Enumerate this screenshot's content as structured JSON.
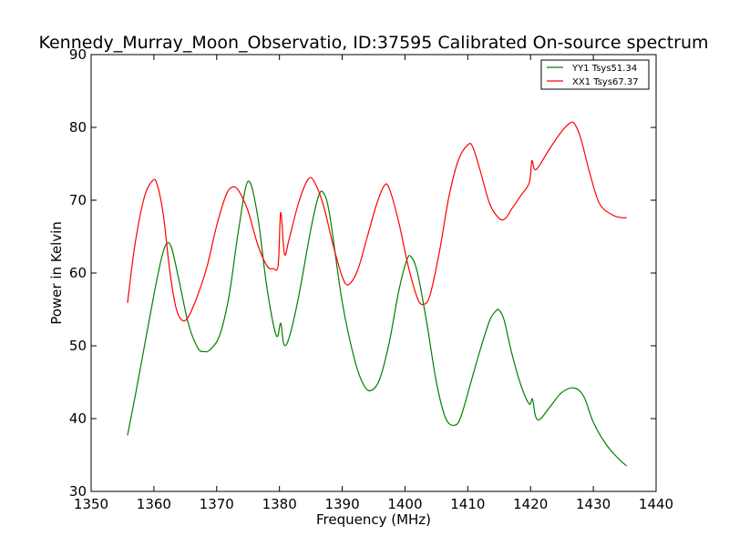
{
  "chart_data": {
    "type": "line",
    "title": "Kennedy_Murray_Moon_Observatio, ID:37595 Calibrated On-source spectrum",
    "xlabel": "Frequency (MHz)",
    "ylabel": "Power in Kelvin",
    "xlim": [
      1350,
      1440
    ],
    "ylim": [
      30,
      90
    ],
    "xticks": [
      "1350",
      "1360",
      "1370",
      "1380",
      "1390",
      "1400",
      "1410",
      "1420",
      "1430",
      "1440"
    ],
    "yticks": [
      "30",
      "40",
      "50",
      "60",
      "70",
      "80",
      "90"
    ],
    "grid": false,
    "legend_position": "top-right",
    "series": [
      {
        "name": "YY1 Tsys51.34",
        "color": "#008000",
        "x": [
          1355.8,
          1357,
          1358.5,
          1360,
          1361.2,
          1362,
          1362.8,
          1364,
          1365.5,
          1367,
          1368,
          1369,
          1370.5,
          1372,
          1373.5,
          1375,
          1376.5,
          1378,
          1379.5,
          1380.2,
          1380.7,
          1381.5,
          1383,
          1385,
          1386.2,
          1387,
          1388,
          1390,
          1392,
          1393.5,
          1394.7,
          1396,
          1397.5,
          1399,
          1400.3,
          1401,
          1402,
          1403.5,
          1405,
          1406.5,
          1408,
          1409,
          1410.5,
          1412,
          1413.5,
          1414.5,
          1415,
          1415.8,
          1417,
          1418.5,
          1419.8,
          1420.3,
          1420.8,
          1421.5,
          1423,
          1425,
          1427,
          1428.5,
          1430,
          1432,
          1434,
          1435.3
        ],
        "y": [
          37.7,
          43,
          50,
          57,
          62,
          64,
          63.5,
          59,
          53,
          49.7,
          49.2,
          49.5,
          51.5,
          57,
          66,
          72.6,
          68,
          58,
          51.4,
          53.1,
          50.2,
          51,
          56.5,
          66,
          70.5,
          71,
          68,
          56,
          48,
          44.5,
          43.9,
          45.5,
          50.5,
          57.5,
          61.8,
          62.2,
          60,
          53,
          45,
          40,
          39.1,
          40.5,
          45,
          49.5,
          53.5,
          54.8,
          54.9,
          53.5,
          49,
          44.5,
          42,
          42.7,
          40.3,
          39.9,
          41.5,
          43.6,
          44.2,
          43,
          39.5,
          36.5,
          34.5,
          33.5
        ]
      },
      {
        "name": "XX1 Tsys67.37",
        "color": "#ff0000",
        "x": [
          1355.8,
          1357,
          1358.5,
          1359.8,
          1360.5,
          1361.5,
          1362.5,
          1363.5,
          1364.5,
          1365.5,
          1367,
          1368.5,
          1370,
          1371.5,
          1372.5,
          1373.5,
          1375,
          1376.5,
          1378,
          1379,
          1379.8,
          1380.2,
          1380.8,
          1381.5,
          1383,
          1384.5,
          1385.5,
          1387,
          1388.5,
          1390,
          1391,
          1392.5,
          1394,
          1395.5,
          1396.7,
          1397.5,
          1399,
          1400.5,
          1402,
          1403,
          1404,
          1405.5,
          1407,
          1408.5,
          1410,
          1410.8,
          1412,
          1413.5,
          1415,
          1416,
          1417,
          1418.5,
          1419.8,
          1420.2,
          1420.6,
          1421.2,
          1423,
          1425,
          1426.3,
          1427,
          1428,
          1429.5,
          1431,
          1433,
          1434.5,
          1435.3
        ],
        "y": [
          55.9,
          64,
          70.5,
          72.7,
          72.2,
          68,
          60.5,
          55.3,
          53.5,
          54,
          57,
          61,
          66.5,
          70.7,
          71.8,
          71.3,
          68.5,
          64,
          61,
          60.6,
          61.1,
          68.3,
          62.6,
          64.5,
          69.5,
          72.8,
          72.6,
          69.3,
          64,
          59.5,
          58.4,
          60.5,
          65,
          69.5,
          72,
          71.6,
          67,
          61,
          56.5,
          55.7,
          57,
          63,
          70.5,
          75.5,
          77.6,
          77.3,
          74,
          69.5,
          67.5,
          67.5,
          68.8,
          70.7,
          72.4,
          75.4,
          74.3,
          74.5,
          77,
          79.5,
          80.6,
          80.5,
          78.5,
          73.5,
          69.5,
          68,
          67.6,
          67.6
        ]
      }
    ]
  }
}
